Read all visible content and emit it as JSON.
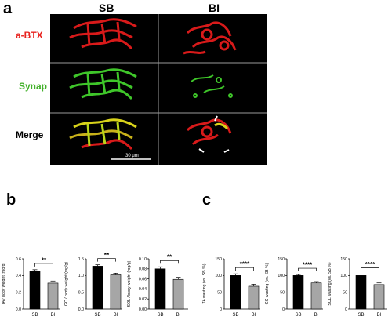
{
  "figure": {
    "panels": {
      "a": "a",
      "b": "b",
      "c": "c"
    },
    "columns": [
      "SB",
      "BI"
    ],
    "rows": [
      {
        "label": "a-BTX",
        "color": "#e8231f"
      },
      {
        "label": "Synap",
        "color": "#43b02a"
      },
      {
        "label": "Merge",
        "color": "#000000"
      }
    ],
    "scale_bar": "30 μm"
  },
  "chart_data": [
    {
      "type": "bar",
      "ylabel": "TA / body weight (mg/g)",
      "categories": [
        "SB",
        "BI"
      ],
      "values": [
        0.45,
        0.31
      ],
      "errors": [
        0.02,
        0.025
      ],
      "ylim": [
        0,
        0.6
      ],
      "yticks": [
        "0.0",
        "0.2",
        "0.4",
        "0.6"
      ],
      "sig": "**",
      "colors": [
        "#000000",
        "#a6a6a6"
      ]
    },
    {
      "type": "bar",
      "ylabel": "GC / body weight (mg/g)",
      "categories": [
        "SB",
        "BI"
      ],
      "values": [
        1.28,
        1.02
      ],
      "errors": [
        0.04,
        0.05
      ],
      "ylim": [
        0,
        1.5
      ],
      "yticks": [
        "0.0",
        "0.5",
        "1.0",
        "1.5"
      ],
      "sig": "**",
      "colors": [
        "#000000",
        "#a6a6a6"
      ]
    },
    {
      "type": "bar",
      "ylabel": "SOL / body weight (mg/g)",
      "categories": [
        "SB",
        "BI"
      ],
      "values": [
        0.08,
        0.059
      ],
      "errors": [
        0.004,
        0.004
      ],
      "ylim": [
        0,
        0.1
      ],
      "yticks": [
        "0.00",
        "0.02",
        "0.04",
        "0.06",
        "0.08",
        "0.10"
      ],
      "sig": "**",
      "colors": [
        "#000000",
        "#a6a6a6"
      ]
    },
    {
      "type": "bar",
      "ylabel": "TA wasting (vs. SB %)",
      "categories": [
        "SB",
        "BI"
      ],
      "values": [
        100,
        68
      ],
      "errors": [
        5,
        6
      ],
      "ylim": [
        0,
        150
      ],
      "yticks": [
        "0",
        "50",
        "100",
        "150"
      ],
      "sig": "****",
      "colors": [
        "#000000",
        "#a6a6a6"
      ]
    },
    {
      "type": "bar",
      "ylabel": "GC wasting (vs. SB %)",
      "categories": [
        "SB",
        "BI"
      ],
      "values": [
        100,
        78
      ],
      "errors": [
        3,
        4
      ],
      "ylim": [
        0,
        150
      ],
      "yticks": [
        "0",
        "50",
        "100",
        "150"
      ],
      "sig": "****",
      "colors": [
        "#000000",
        "#a6a6a6"
      ]
    },
    {
      "type": "bar",
      "ylabel": "SOL wasting (vs. SB %)",
      "categories": [
        "SB",
        "BI"
      ],
      "values": [
        100,
        73
      ],
      "errors": [
        4,
        5
      ],
      "ylim": [
        0,
        150
      ],
      "yticks": [
        "0",
        "50",
        "100",
        "150"
      ],
      "sig": "****",
      "colors": [
        "#000000",
        "#a6a6a6"
      ]
    }
  ]
}
